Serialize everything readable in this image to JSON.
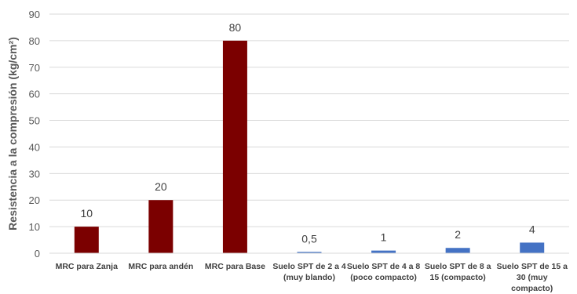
{
  "chart_data": {
    "type": "bar",
    "title": "",
    "xlabel": "",
    "ylabel": "Resistencia a la compresión (kg/cm²)",
    "ylim": [
      0,
      90
    ],
    "yticks": [
      0,
      10,
      20,
      30,
      40,
      50,
      60,
      70,
      80,
      90
    ],
    "grid": true,
    "legend": "none",
    "categories": [
      [
        "MRC para Zanja"
      ],
      [
        "MRC para andén"
      ],
      [
        "MRC para Base"
      ],
      [
        "Suelo SPT de 2 a 4",
        "(muy blando)"
      ],
      [
        "Suelo SPT de 4 a 8",
        "(poco compacto)"
      ],
      [
        "Suelo SPT de 8 a",
        "15 (compacto)"
      ],
      [
        "Suelo SPT de 15 a",
        "30 (muy",
        "compacto)"
      ]
    ],
    "values": [
      10,
      20,
      80,
      0.5,
      1,
      2,
      4
    ],
    "data_labels": [
      "10",
      "20",
      "80",
      "0,5",
      "1",
      "2",
      "4"
    ],
    "colors": [
      "#7b0000",
      "#7b0000",
      "#7b0000",
      "#4472c4",
      "#4472c4",
      "#4472c4",
      "#4472c4"
    ]
  }
}
